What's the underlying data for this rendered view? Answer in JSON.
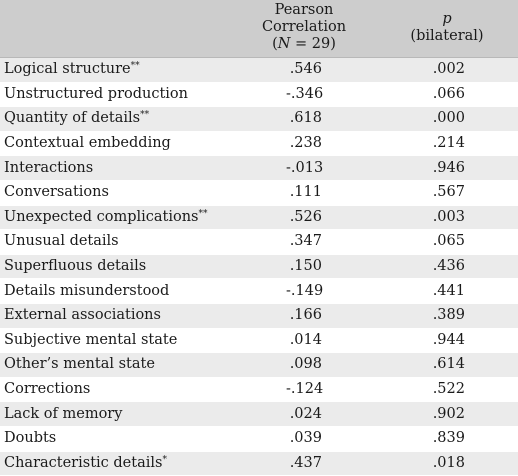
{
  "table": {
    "header": {
      "col1": "",
      "col2_line1": "Pearson Correlation",
      "col2_line2_pre": "(",
      "col2_line2_var": "N",
      "col2_line2_post": " = 29)",
      "col3_line1": "p",
      "col3_line2": "(bilateral)"
    },
    "rows": [
      {
        "label": "Logical structure",
        "mark": "**",
        "r": ".546",
        "p": ".002"
      },
      {
        "label": "Unstructured production",
        "mark": "",
        "r": "-.346",
        "p": ".066"
      },
      {
        "label": "Quantity of details",
        "mark": "**",
        "r": ".618",
        "p": ".000"
      },
      {
        "label": "Contextual embedding",
        "mark": "",
        "r": ".238",
        "p": ".214"
      },
      {
        "label": "Interactions",
        "mark": "",
        "r": "-.013",
        "p": ".946"
      },
      {
        "label": "Conversations",
        "mark": "",
        "r": ".111",
        "p": ".567"
      },
      {
        "label": "Unexpected complications",
        "mark": "**",
        "r": ".526",
        "p": ".003"
      },
      {
        "label": "Unusual details",
        "mark": "",
        "r": ".347",
        "p": ".065"
      },
      {
        "label": "Superfluous details",
        "mark": "",
        "r": ".150",
        "p": ".436"
      },
      {
        "label": "Details misunderstood",
        "mark": "",
        "r": "-.149",
        "p": ".441"
      },
      {
        "label": "External associations",
        "mark": "",
        "r": ".166",
        "p": ".389"
      },
      {
        "label": "Subjective mental state",
        "mark": "",
        "r": ".014",
        "p": ".944"
      },
      {
        "label": "Other’s mental state",
        "mark": "",
        "r": ".098",
        "p": ".614"
      },
      {
        "label": "Corrections",
        "mark": "",
        "r": "-.124",
        "p": ".522"
      },
      {
        "label": "Lack of memory",
        "mark": "",
        "r": ".024",
        "p": ".902"
      },
      {
        "label": "Doubts",
        "mark": "",
        "r": ".039",
        "p": ".839"
      },
      {
        "label": "Characteristic details",
        "mark": "*",
        "r": ".437",
        "p": ".018"
      }
    ]
  },
  "colors": {
    "header_bg": "#cdcdcd",
    "shaded_row_bg": "#ebebeb",
    "plain_row_bg": "#ffffff",
    "text": "#1a1a1a"
  }
}
